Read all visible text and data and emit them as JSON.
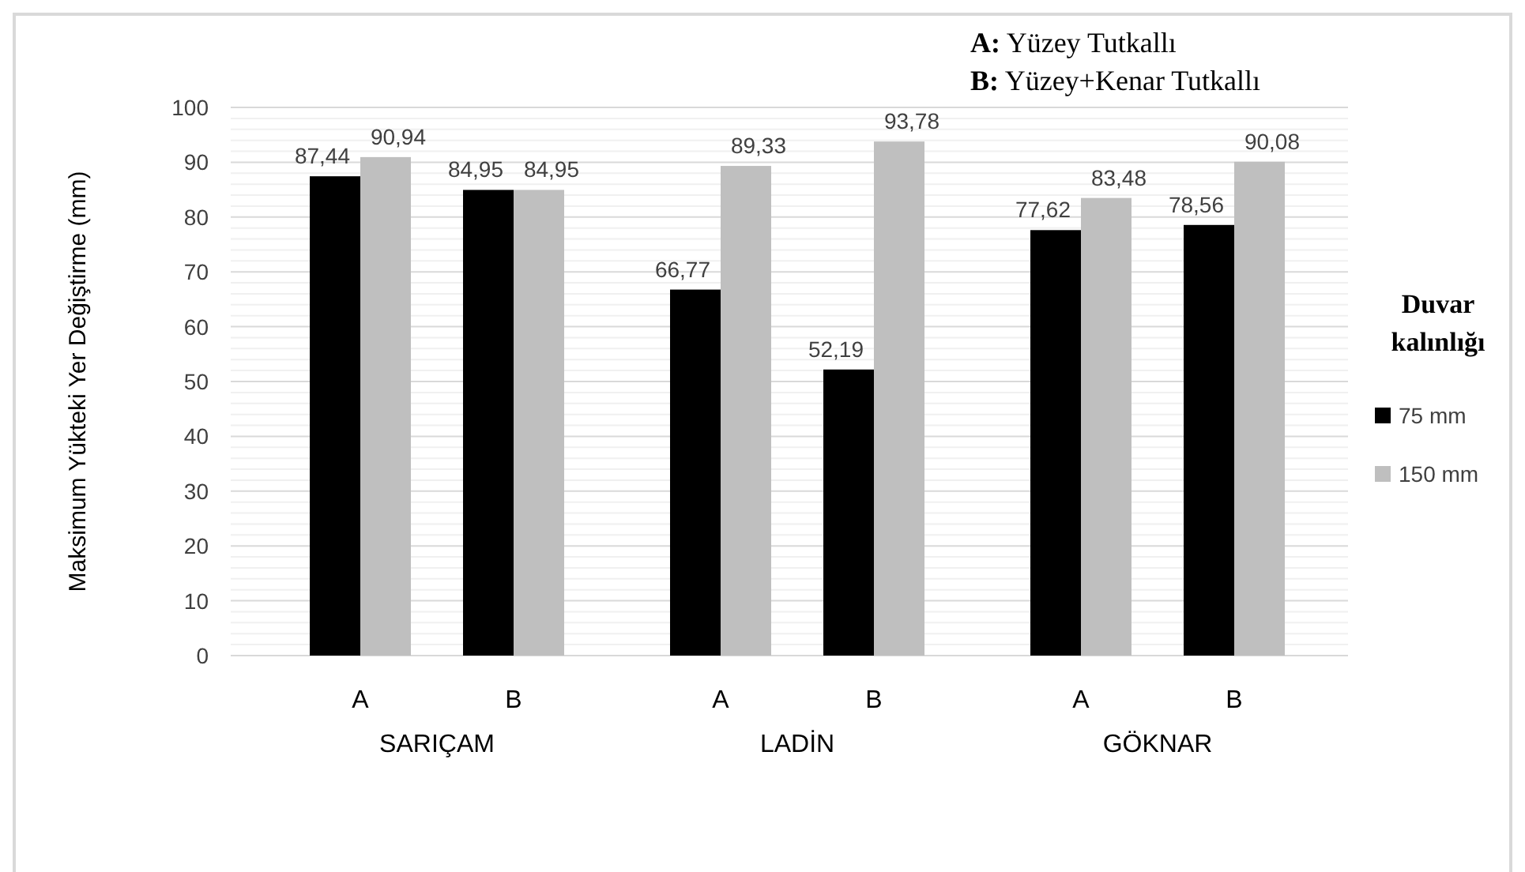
{
  "chart_data": {
    "type": "bar",
    "ylabel": "Maksimum Yükteki Yer Değiştirme (mm)",
    "legend_title": "Duvar kalınlığı",
    "categories": [
      "A",
      "B",
      "A",
      "B",
      "A",
      "B"
    ],
    "series": [
      {
        "name": "75 mm",
        "color": "#000000",
        "values": [
          87.44,
          84.95,
          66.77,
          52.19,
          77.62,
          78.56
        ]
      },
      {
        "name": "150 mm",
        "color": "#bfbfbf",
        "values": [
          90.94,
          84.95,
          89.33,
          93.78,
          83.48,
          90.08
        ]
      }
    ],
    "value_labels": [
      [
        "87,44",
        "84,95",
        "66,77",
        "52,19",
        "77,62",
        "78,56"
      ],
      [
        "90,94",
        "84,95",
        "89,33",
        "93,78",
        "83,48",
        "90,08"
      ]
    ],
    "annotations": [
      "A: Yüzey Tutkallı",
      "B: Yüzey+Kenar Tutkallı",
      "SARIÇAM",
      "LADİN",
      "GÖKNAR"
    ],
    "ylim": [
      0,
      100
    ],
    "yticks": [
      0,
      10,
      20,
      30,
      40,
      50,
      60,
      70,
      80,
      90,
      100
    ],
    "grid": "y",
    "legend": "right"
  }
}
